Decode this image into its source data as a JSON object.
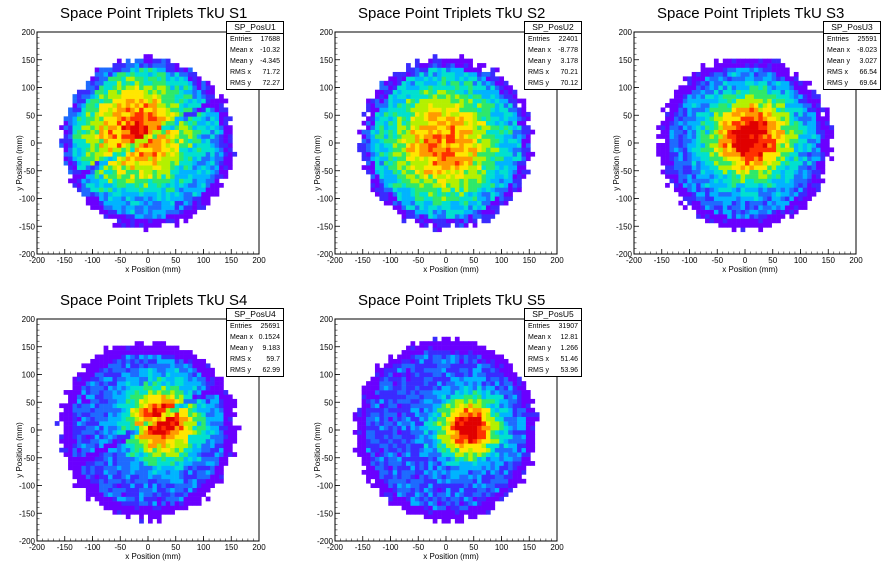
{
  "chart_data": [
    {
      "type": "heatmap",
      "title": "Space Point Triplets TkU S1",
      "xlabel": "x Position (mm)",
      "ylabel": "y Position (mm)",
      "xlim": [
        -200,
        200
      ],
      "ylim": [
        -200,
        200
      ],
      "xticks": [
        -200,
        -150,
        -100,
        -50,
        0,
        50,
        100,
        150,
        200
      ],
      "yticks": [
        -200,
        -150,
        -100,
        -50,
        0,
        50,
        100,
        150,
        200
      ],
      "stats": {
        "name": "SP_PosU1",
        "rows": [
          {
            "label": "Entries",
            "value": "17688"
          },
          {
            "label": "Mean x",
            "value": "-10.32"
          },
          {
            "label": "Mean y",
            "value": "-4.345"
          },
          {
            "label": "RMS x",
            "value": "71.72"
          },
          {
            "label": "RMS y",
            "value": "72.27"
          }
        ]
      },
      "distribution": {
        "shape": "disk",
        "radius_mm": 155,
        "center": [
          0,
          0
        ],
        "core_center": [
          -20,
          20
        ],
        "core_sigma_mm": 75,
        "peak_level": 0.8,
        "stripe": true
      }
    },
    {
      "type": "heatmap",
      "title": "Space Point Triplets TkU S2",
      "xlabel": "x Position (mm)",
      "ylabel": "y Position (mm)",
      "xlim": [
        -200,
        200
      ],
      "ylim": [
        -200,
        200
      ],
      "xticks": [
        -200,
        -150,
        -100,
        -50,
        0,
        50,
        100,
        150,
        200
      ],
      "yticks": [
        -200,
        -150,
        -100,
        -50,
        0,
        50,
        100,
        150,
        200
      ],
      "stats": {
        "name": "SP_PosU2",
        "rows": [
          {
            "label": "Entries",
            "value": "22401"
          },
          {
            "label": "Mean x",
            "value": "-8.778"
          },
          {
            "label": "Mean y",
            "value": "3.178"
          },
          {
            "label": "RMS x",
            "value": "70.21"
          },
          {
            "label": "RMS y",
            "value": "70.12"
          }
        ]
      },
      "distribution": {
        "shape": "disk",
        "radius_mm": 155,
        "center": [
          0,
          0
        ],
        "core_center": [
          -5,
          0
        ],
        "core_sigma_mm": 75,
        "peak_level": 0.75,
        "stripe": false
      }
    },
    {
      "type": "heatmap",
      "title": "Space Point Triplets TkU S3",
      "xlabel": "x Position (mm)",
      "ylabel": "y Position (mm)",
      "xlim": [
        -200,
        200
      ],
      "ylim": [
        -200,
        200
      ],
      "xticks": [
        -200,
        -150,
        -100,
        -50,
        0,
        50,
        100,
        150,
        200
      ],
      "yticks": [
        -200,
        -150,
        -100,
        -50,
        0,
        50,
        100,
        150,
        200
      ],
      "stats": {
        "name": "SP_PosU3",
        "rows": [
          {
            "label": "Entries",
            "value": "25591"
          },
          {
            "label": "Mean x",
            "value": "-8.023"
          },
          {
            "label": "Mean y",
            "value": "3.027"
          },
          {
            "label": "RMS x",
            "value": "66.54"
          },
          {
            "label": "RMS y",
            "value": "69.64"
          }
        ]
      },
      "distribution": {
        "shape": "disk",
        "radius_mm": 155,
        "center": [
          0,
          0
        ],
        "core_center": [
          10,
          10
        ],
        "core_sigma_mm": 55,
        "peak_level": 0.95,
        "stripe": false
      }
    },
    {
      "type": "heatmap",
      "title": "Space Point Triplets TkU S4",
      "xlabel": "x Position (mm)",
      "ylabel": "y Position (mm)",
      "xlim": [
        -200,
        200
      ],
      "ylim": [
        -200,
        200
      ],
      "xticks": [
        -200,
        -150,
        -100,
        -50,
        0,
        50,
        100,
        150,
        200
      ],
      "yticks": [
        -200,
        -150,
        -100,
        -50,
        0,
        50,
        100,
        150,
        200
      ],
      "stats": {
        "name": "SP_PosU4",
        "rows": [
          {
            "label": "Entries",
            "value": "25691"
          },
          {
            "label": "Mean x",
            "value": "0.1524"
          },
          {
            "label": "Mean y",
            "value": "9.183"
          },
          {
            "label": "RMS x",
            "value": "59.7"
          },
          {
            "label": "RMS y",
            "value": "62.99"
          }
        ]
      },
      "distribution": {
        "shape": "disk",
        "radius_mm": 160,
        "center": [
          0,
          0
        ],
        "core_center": [
          25,
          15
        ],
        "core_sigma_mm": 45,
        "peak_level": 0.95,
        "stripe": true
      }
    },
    {
      "type": "heatmap",
      "title": "Space Point Triplets TkU S5",
      "xlabel": "x Position (mm)",
      "ylabel": "y Position (mm)",
      "xlim": [
        -200,
        200
      ],
      "ylim": [
        -200,
        200
      ],
      "xticks": [
        -200,
        -150,
        -100,
        -50,
        0,
        50,
        100,
        150,
        200
      ],
      "yticks": [
        -200,
        -150,
        -100,
        -50,
        0,
        50,
        100,
        150,
        200
      ],
      "stats": {
        "name": "SP_PosU5",
        "rows": [
          {
            "label": "Entries",
            "value": "31907"
          },
          {
            "label": "Mean x",
            "value": "12.81"
          },
          {
            "label": "Mean y",
            "value": "1.266"
          },
          {
            "label": "RMS x",
            "value": "51.46"
          },
          {
            "label": "RMS y",
            "value": "53.96"
          }
        ]
      },
      "distribution": {
        "shape": "disk",
        "radius_mm": 165,
        "center": [
          0,
          0
        ],
        "core_center": [
          40,
          5
        ],
        "core_sigma_mm": 38,
        "peak_level": 1.0,
        "stripe": false
      }
    }
  ],
  "palette": [
    "#6a00ff",
    "#3a2bff",
    "#1e6bff",
    "#00b4ff",
    "#00e0d0",
    "#2ee86a",
    "#b4f000",
    "#ffe600",
    "#ff9a00",
    "#ff3000",
    "#e00000"
  ]
}
